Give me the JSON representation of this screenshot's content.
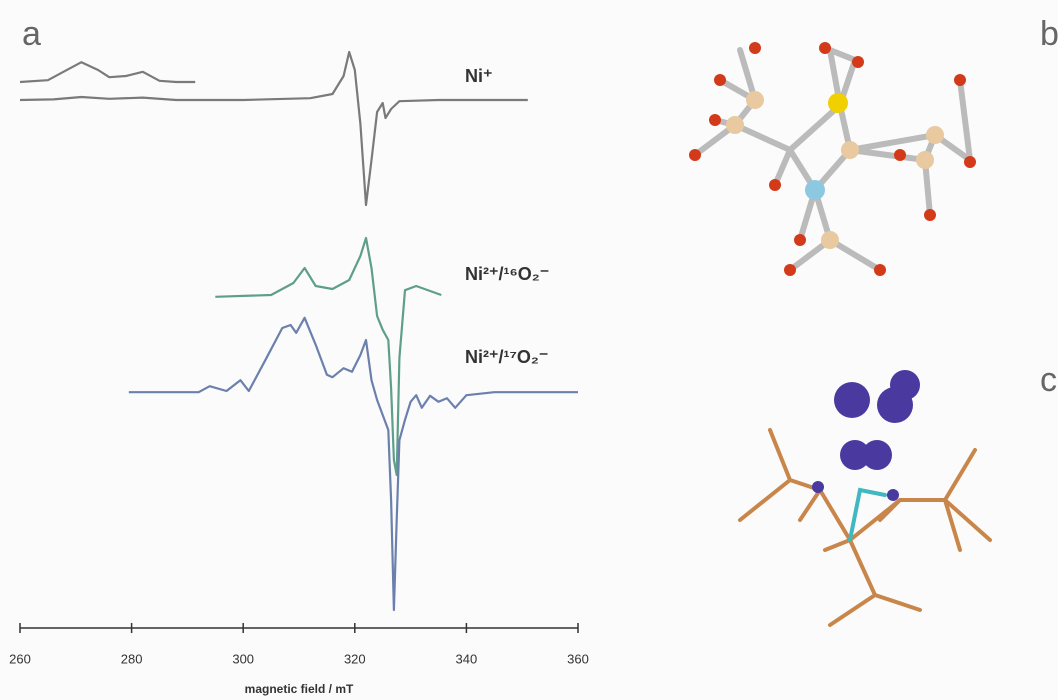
{
  "panels": [
    "a",
    "b",
    "c"
  ],
  "chart_data": {
    "type": "line",
    "xlabel": "magnetic field / mT",
    "xlim": [
      260,
      360
    ],
    "xticks": [
      260,
      280,
      300,
      320,
      340,
      360
    ],
    "ylim": [
      0,
      100
    ],
    "series": [
      {
        "name": "Ni⁺",
        "color": "#7a7a7a",
        "x": [
          260,
          266,
          271,
          276,
          282,
          288,
          300,
          312,
          316,
          318,
          319,
          320,
          321,
          322,
          323,
          324,
          325,
          325.5,
          326.5,
          328,
          335,
          351
        ],
        "values": [
          88,
          88.1,
          88.5,
          88.2,
          88.4,
          88,
          88,
          88.3,
          89,
          92,
          96,
          93,
          84,
          70.5,
          78,
          86,
          87.5,
          85,
          86.5,
          87.8,
          88,
          88
        ]
      },
      {
        "color": "#7a7a7a",
        "x": [
          260,
          265,
          268,
          271,
          274,
          276,
          279,
          282,
          285,
          288,
          291.4
        ],
        "values": [
          91,
          91.3,
          92.8,
          94.3,
          93,
          91.8,
          92,
          92.7,
          91.2,
          91,
          91
        ]
      },
      {
        "name": "Ni²⁺/¹⁶O₂⁻",
        "color": "#5f9f8a",
        "x": [
          295,
          305,
          309,
          311,
          313,
          316,
          319,
          321,
          322,
          323,
          324,
          325,
          326,
          326.5,
          327,
          327.5,
          328,
          329,
          331,
          335.5
        ],
        "values": [
          55.2,
          55.5,
          57.5,
          60,
          57,
          56.5,
          58,
          62,
          65,
          60,
          52,
          49.7,
          48,
          40,
          28,
          25.5,
          45,
          56.3,
          57,
          55.5
        ]
      },
      {
        "name": "Ni²⁺/¹⁷O₂⁻",
        "color": "#6b80ad",
        "x": [
          279.5,
          292,
          294,
          297,
          299.5,
          301,
          304,
          307,
          308.5,
          309.5,
          311,
          313,
          315,
          316,
          318,
          319.5,
          321,
          322,
          323,
          324,
          325,
          326,
          326.5,
          327,
          327.5,
          328,
          329,
          330,
          331,
          332,
          333.5,
          335,
          336.5,
          338,
          340,
          345,
          360
        ],
        "values": [
          39.3,
          39.3,
          40.3,
          39.5,
          41.3,
          39.5,
          44.7,
          50,
          50.5,
          49.2,
          51.7,
          47.2,
          42.2,
          41.8,
          43.3,
          42.7,
          45.5,
          48,
          41.3,
          38,
          35.5,
          33,
          21.3,
          3,
          18,
          31.3,
          34.7,
          37.7,
          38.8,
          36.7,
          38.7,
          37.7,
          38.3,
          36.7,
          38.8,
          39.3,
          39.3
        ]
      }
    ]
  }
}
